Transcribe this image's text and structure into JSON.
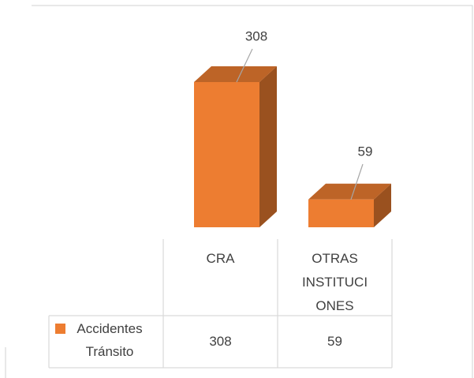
{
  "chart_data": {
    "type": "bar3d",
    "categories": [
      "CRA",
      "OTRAS INSTITUCIONES"
    ],
    "series": [
      {
        "name": "Accidentes Tránsito",
        "color": "#ED7D31",
        "values": [
          308,
          59
        ]
      }
    ]
  }
}
